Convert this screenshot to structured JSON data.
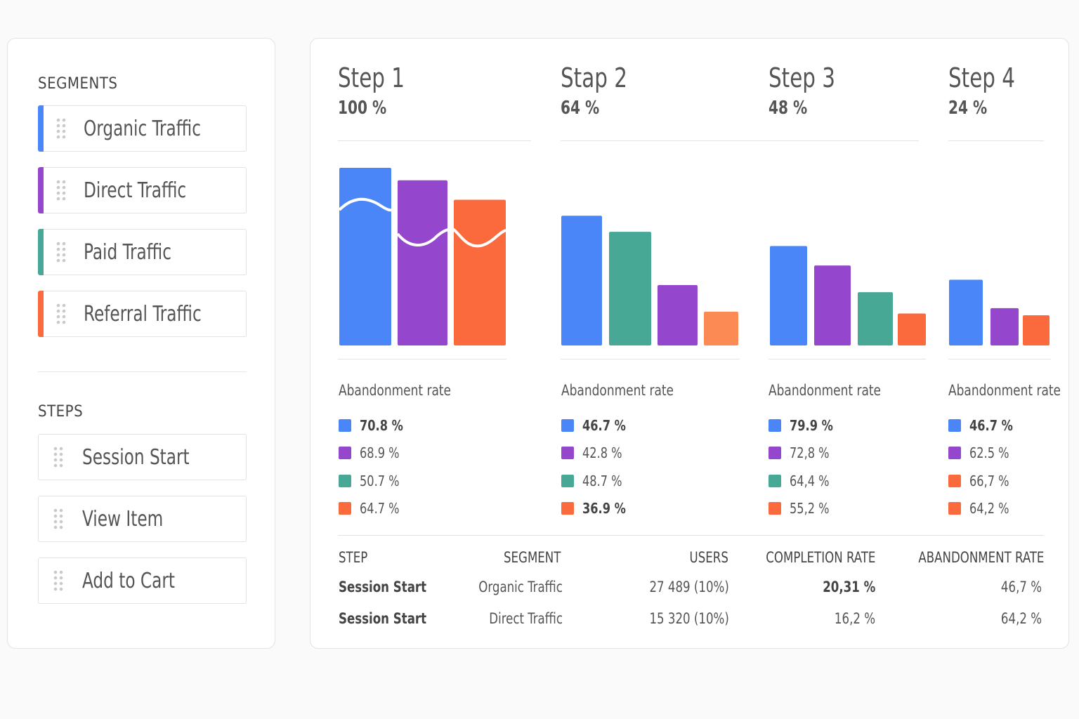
{
  "colors": {
    "blue": "#4a86f7",
    "purple": "#9446cc",
    "teal": "#48a896",
    "orange": "#fa6a3c",
    "light_orange": "#fb8a55"
  },
  "sidebar": {
    "segments_title": "SEGMENTS",
    "segments": [
      {
        "label": "Organic Traffic",
        "color": "#4a86f7"
      },
      {
        "label": "Direct Traffic",
        "color": "#9446cc"
      },
      {
        "label": "Paid Traffic",
        "color": "#48a896"
      },
      {
        "label": "Referral Traffic",
        "color": "#fa6a3c"
      }
    ],
    "steps_title": "STEPS",
    "steps": [
      {
        "label": "Session Start"
      },
      {
        "label": "View Item"
      },
      {
        "label": "Add to Cart"
      }
    ]
  },
  "funnel": {
    "abandonment_label": "Abandonment rate",
    "steps": [
      {
        "title": "Step 1",
        "pct": "100 %",
        "legend": [
          {
            "value": "70.8 %",
            "color": "#4a86f7",
            "bold": true
          },
          {
            "value": "68.9 %",
            "color": "#9446cc",
            "bold": false
          },
          {
            "value": "50.7 %",
            "color": "#48a896",
            "bold": false
          },
          {
            "value": "64.7 %",
            "color": "#fa6a3c",
            "bold": false
          }
        ]
      },
      {
        "title": "Stap 2",
        "pct": "64 %",
        "legend": [
          {
            "value": "46.7 %",
            "color": "#4a86f7",
            "bold": true
          },
          {
            "value": "42.8 %",
            "color": "#9446cc",
            "bold": false
          },
          {
            "value": "48.7 %",
            "color": "#48a896",
            "bold": false
          },
          {
            "value": "36.9 %",
            "color": "#fa6a3c",
            "bold": true
          }
        ]
      },
      {
        "title": "Step 3",
        "pct": "48 %",
        "legend": [
          {
            "value": "79.9 %",
            "color": "#4a86f7",
            "bold": true
          },
          {
            "value": "72,8 %",
            "color": "#9446cc",
            "bold": false
          },
          {
            "value": "64,4 %",
            "color": "#48a896",
            "bold": false
          },
          {
            "value": "55,2 %",
            "color": "#fa6a3c",
            "bold": false
          }
        ]
      },
      {
        "title": "Step 4",
        "pct": "24 %",
        "legend": [
          {
            "value": "46.7 %",
            "color": "#4a86f7",
            "bold": true
          },
          {
            "value": "62.5 %",
            "color": "#9446cc",
            "bold": false
          },
          {
            "value": "66,7 %",
            "color": "#fa6a3c",
            "bold": false
          },
          {
            "value": "64,2 %",
            "color": "#fa6a3c",
            "bold": false
          }
        ]
      }
    ]
  },
  "chart_data": {
    "type": "bar",
    "categories": [
      "Step 1",
      "Stap 2",
      "Step 3",
      "Step 4"
    ],
    "ylim": [
      0,
      100
    ],
    "groups": [
      {
        "bars": [
          {
            "value": 100,
            "color": "#4a86f7"
          },
          {
            "value": 93,
            "color": "#9446cc"
          },
          {
            "value": 82,
            "color": "#fa6a3c"
          }
        ]
      },
      {
        "bars": [
          {
            "value": 73,
            "color": "#4a86f7"
          },
          {
            "value": 64,
            "color": "#48a896"
          },
          {
            "value": 34,
            "color": "#9446cc"
          },
          {
            "value": 19,
            "color": "#fb8a55"
          }
        ]
      },
      {
        "bars": [
          {
            "value": 56,
            "color": "#4a86f7"
          },
          {
            "value": 45,
            "color": "#9446cc"
          },
          {
            "value": 30,
            "color": "#48a896"
          },
          {
            "value": 18,
            "color": "#fa6a3c"
          }
        ]
      },
      {
        "bars": [
          {
            "value": 37,
            "color": "#4a86f7"
          },
          {
            "value": 21,
            "color": "#9446cc"
          },
          {
            "value": 17,
            "color": "#fa6a3c"
          }
        ]
      }
    ]
  },
  "table": {
    "headers": {
      "step": "STEP",
      "segment": "SEGMENT",
      "users": "USERS",
      "completion": "COMPLETION RATE",
      "abandonment": "ABANDONMENT RATE"
    },
    "rows": [
      {
        "step": "Session Start",
        "segment": "Organic Traffic",
        "users": "27 489 (10%)",
        "completion": "20,31 %",
        "abandonment": "46,7 %"
      },
      {
        "step": "Session Start",
        "segment": "Direct Traffic",
        "users": "15 320 (10%)",
        "completion": "16,2 %",
        "abandonment": "64,2 %"
      }
    ]
  }
}
